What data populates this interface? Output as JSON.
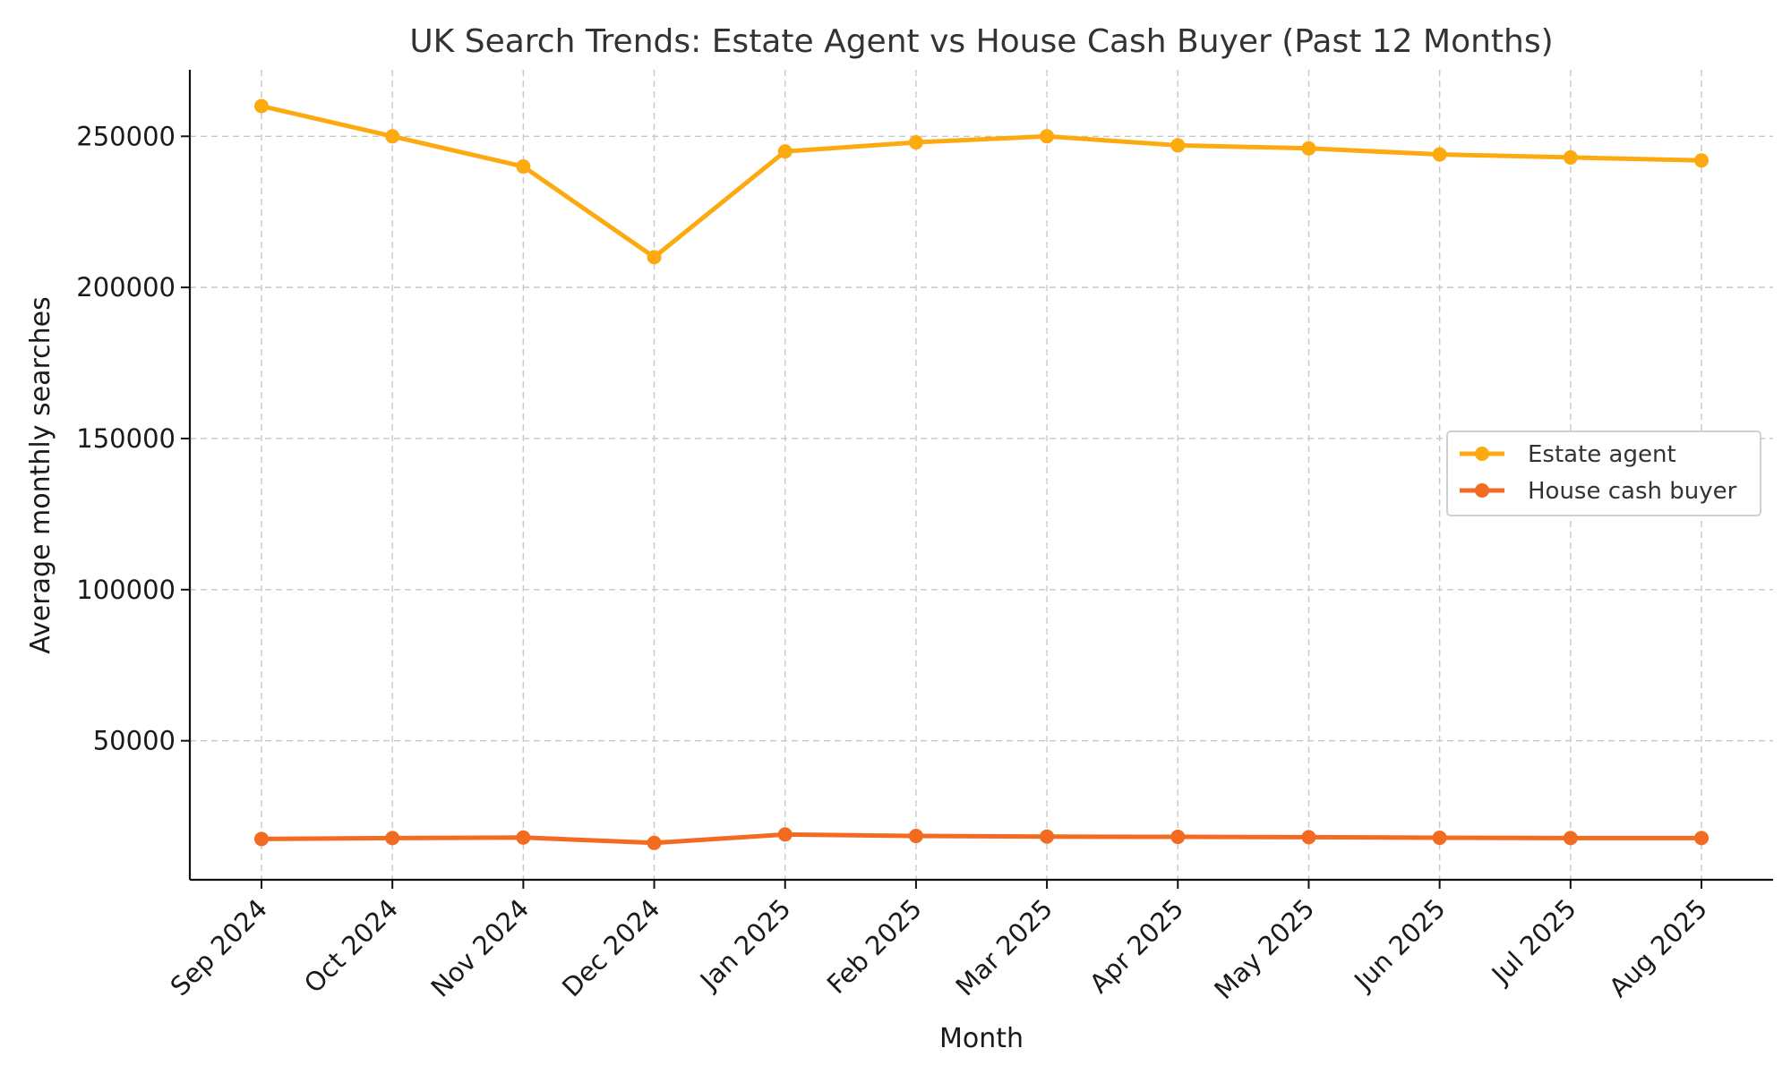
{
  "chart_data": {
    "type": "line",
    "title": "UK Search Trends: Estate Agent vs House Cash Buyer (Past 12 Months)",
    "xlabel": "Month",
    "ylabel": "Average monthly searches",
    "categories": [
      "Sep 2024",
      "Oct 2024",
      "Nov 2024",
      "Dec 2024",
      "Jan 2025",
      "Feb 2025",
      "Mar 2025",
      "Apr 2025",
      "May 2025",
      "Jun 2025",
      "Jul 2025",
      "Aug 2025"
    ],
    "series": [
      {
        "name": "Estate agent",
        "color": "#FDAA10",
        "values": [
          260000,
          250000,
          240000,
          210000,
          245000,
          248000,
          250000,
          247000,
          246000,
          244000,
          243000,
          242000
        ]
      },
      {
        "name": "House cash buyer",
        "color": "#F26B21",
        "values": [
          17500,
          17800,
          18000,
          16200,
          19000,
          18500,
          18300,
          18200,
          18100,
          17900,
          17800,
          17800
        ]
      }
    ],
    "yticks": [
      50000,
      100000,
      150000,
      200000,
      250000
    ],
    "ylim": [
      4000,
      272000
    ],
    "grid": true,
    "legend_position": "center-right"
  }
}
